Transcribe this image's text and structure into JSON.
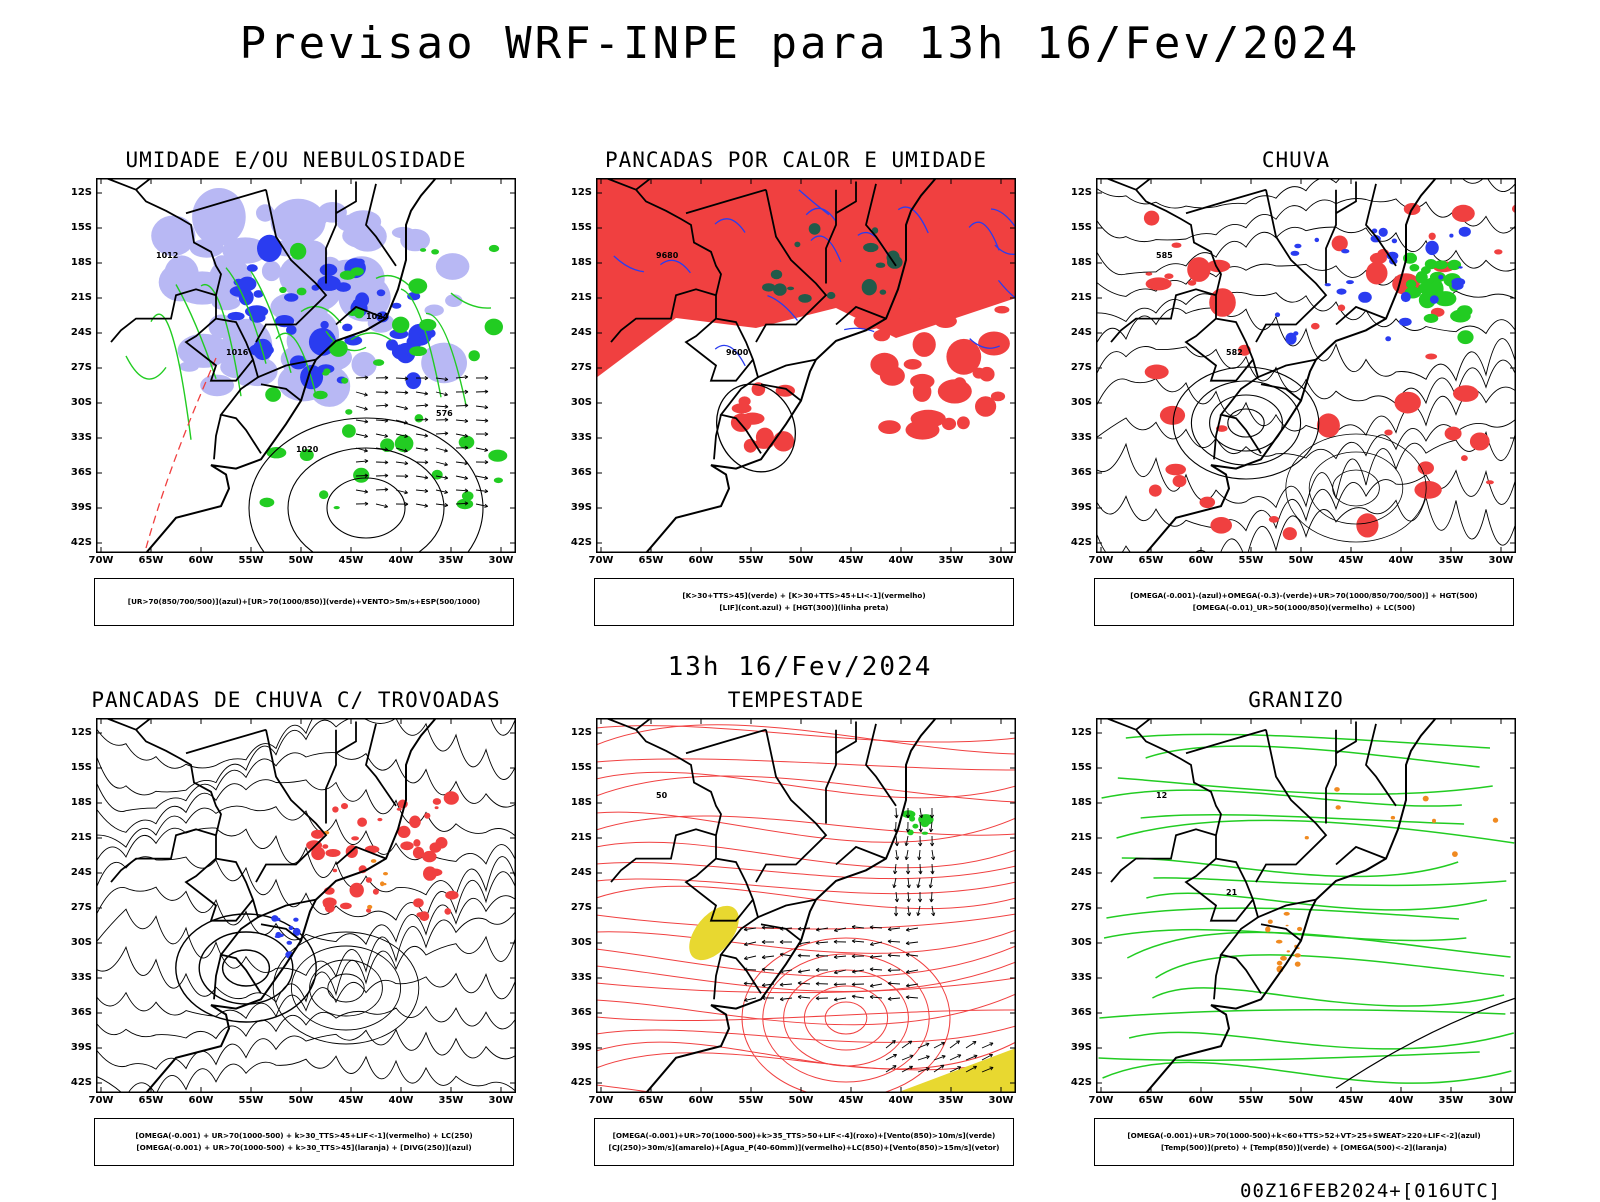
{
  "header": {
    "title": "Previsao WRF-INPE  para 13h 16/Fev/2024",
    "mid_title": "13h 16/Fev/2024",
    "footer": "00Z16FEB2024+[016UTC]"
  },
  "axes": {
    "lat_labels": [
      "12S",
      "15S",
      "18S",
      "21S",
      "24S",
      "27S",
      "30S",
      "33S",
      "36S",
      "39S",
      "42S"
    ],
    "lon_labels": [
      "70W",
      "65W",
      "60W",
      "55W",
      "50W",
      "45W",
      "40W",
      "35W",
      "30W"
    ]
  },
  "colors": {
    "blue": "#2a3cf0",
    "lightblue": "#b8b8f4",
    "green": "#22cc22",
    "red": "#f04040",
    "darkgreen": "#225a4a",
    "orange": "#f08a20",
    "yellow": "#e8d830",
    "black": "#000000"
  },
  "panels": [
    {
      "title": "UMIDADE E/OU NEBULOSIDADE",
      "legend": [
        "[UR>70(850/700/500)](azul)+[UR>70(1000/850)](verde)+VENTO>5m/s+ESP(500/1000)"
      ],
      "contour_labels": [
        "1012",
        "1016",
        "1020",
        "1024",
        "576"
      ]
    },
    {
      "title": "PANCADAS POR CALOR E UMIDADE",
      "legend": [
        "[K>30+TTS>45](verde) + [K>30+TTS>45+LI<-1](vermelho)",
        "[LIF](cont.azul) + [HGT(300)](linha preta)"
      ],
      "contour_labels": [
        "9680",
        "9600"
      ]
    },
    {
      "title": "CHUVA",
      "legend": [
        "[OMEGA(-0.001)-(azul)+OMEGA(-0.3)-(verde)+UR>70(1000/850/700/500)] + HGT(500)",
        "[OMEGA(-0.01)_UR>50(1000/850)(vermelho) + LC(500)"
      ],
      "contour_labels": [
        "585",
        "582"
      ]
    },
    {
      "title": "PANCADAS DE CHUVA C/ TROVOADAS",
      "legend": [
        "[OMEGA(-0.001) + UR>70(1000-500) + k>30_TTS>45+LIF<-1](vermelho) + LC(250)",
        "[OMEGA(-0.001) + UR>70(1000-500) + k>30_TTS>45](laranja) + [DIVG(250)](azul)"
      ],
      "contour_labels": []
    },
    {
      "title": "TEMPESTADE",
      "legend": [
        "[OMEGA(-0.001)+UR>70(1000-500)+k>35_TTS>50+LIF<-4](roxo)+[Vento(850)>10m/s](verde)",
        "[CJ(250)>30m/s](amarelo)+[Agua_P(40-60mm)](vermelho)+LC(850)+[Vento(850)>15m/s](vetor)"
      ],
      "contour_labels": [
        "50"
      ]
    },
    {
      "title": "GRANIZO",
      "legend": [
        "[OMEGA(-0.001)+UR>70(1000-500)+k<60+TTS>52+VT>25+SWEAT>220+LIF<-2](azul)",
        "[Temp(500)](preto) + [Temp(850)](verde) + [OMEGA(500)<-2](laranja)"
      ],
      "contour_labels": [
        "12",
        "21"
      ]
    }
  ]
}
